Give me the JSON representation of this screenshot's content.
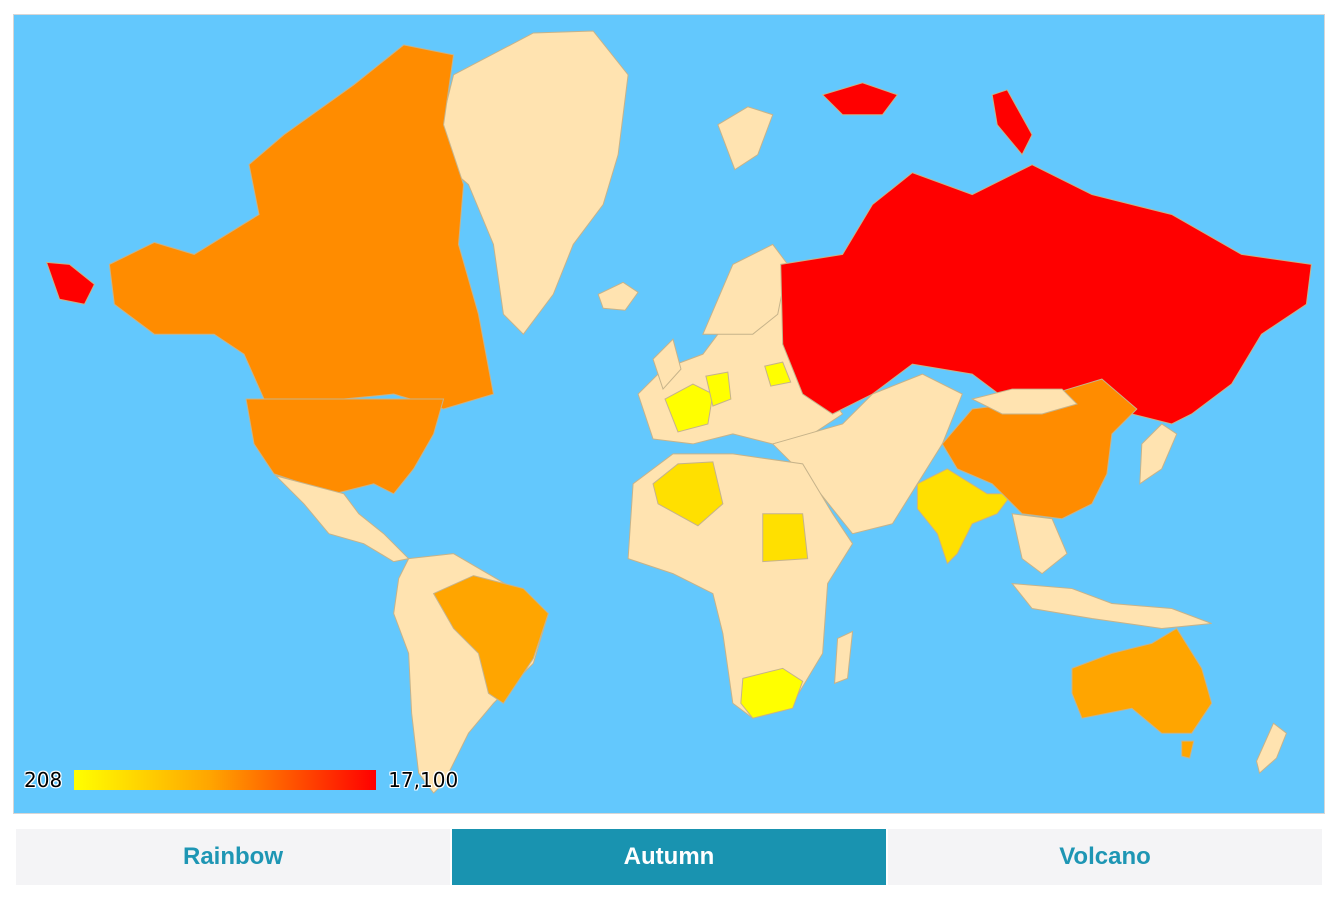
{
  "map": {
    "colors": {
      "ocean": "#63c8fd",
      "no_data": "#ffe3b0",
      "border": "#c6b38a",
      "low": "#ffff00",
      "mid_low": "#ffe000",
      "mid": "#ffa500",
      "mid_high": "#ff8c00",
      "high": "#ff0000"
    },
    "regions": [
      {
        "name": "Russia",
        "level": "high"
      },
      {
        "name": "Alaska",
        "level": "high"
      },
      {
        "name": "Canada",
        "level": "mid_high"
      },
      {
        "name": "United States",
        "level": "mid_high"
      },
      {
        "name": "China",
        "level": "mid_high"
      },
      {
        "name": "Brazil",
        "level": "mid"
      },
      {
        "name": "Australia",
        "level": "mid"
      },
      {
        "name": "India",
        "level": "mid_low"
      },
      {
        "name": "Algeria",
        "level": "mid_low"
      },
      {
        "name": "Sudan",
        "level": "mid_low"
      },
      {
        "name": "South Africa",
        "level": "low"
      },
      {
        "name": "France",
        "level": "low"
      },
      {
        "name": "Germany",
        "level": "low"
      },
      {
        "name": "Belarus",
        "level": "low"
      }
    ]
  },
  "legend": {
    "min_label": "208",
    "max_label": "17,100",
    "gradient": [
      "#ffff00",
      "#ffa500",
      "#ff0000"
    ]
  },
  "tabs": [
    {
      "label": "Rainbow",
      "active": false
    },
    {
      "label": "Autumn",
      "active": true
    },
    {
      "label": "Volcano",
      "active": false
    }
  ]
}
